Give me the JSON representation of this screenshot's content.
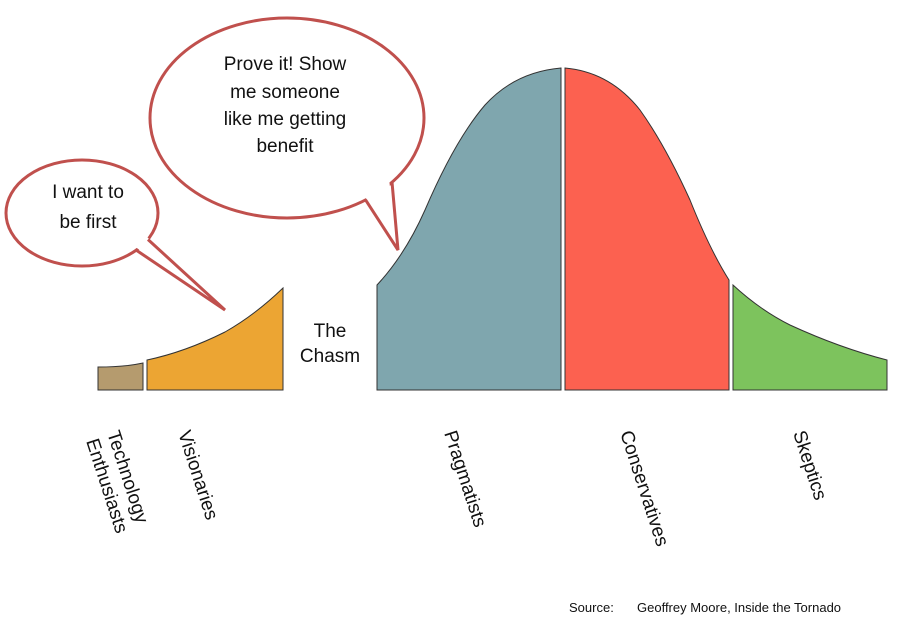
{
  "bubbles": [
    {
      "lines": [
        "I want to",
        "be first"
      ]
    },
    {
      "lines": [
        "Prove it! Show",
        "me someone",
        "like me getting",
        "benefit"
      ]
    }
  ],
  "chasm": {
    "lines": [
      "The",
      "Chasm"
    ]
  },
  "segments": [
    {
      "label_lines": [
        "Technology",
        "Enthusiasts"
      ]
    },
    {
      "label_lines": [
        "Visionaries"
      ]
    },
    {
      "label_lines": [
        "Pragmatists"
      ]
    },
    {
      "label_lines": [
        "Conservatives"
      ]
    },
    {
      "label_lines": [
        "Skeptics"
      ]
    }
  ],
  "source": {
    "prefix": "Source:",
    "text": "Geoffrey Moore, Inside the Tornado"
  }
}
